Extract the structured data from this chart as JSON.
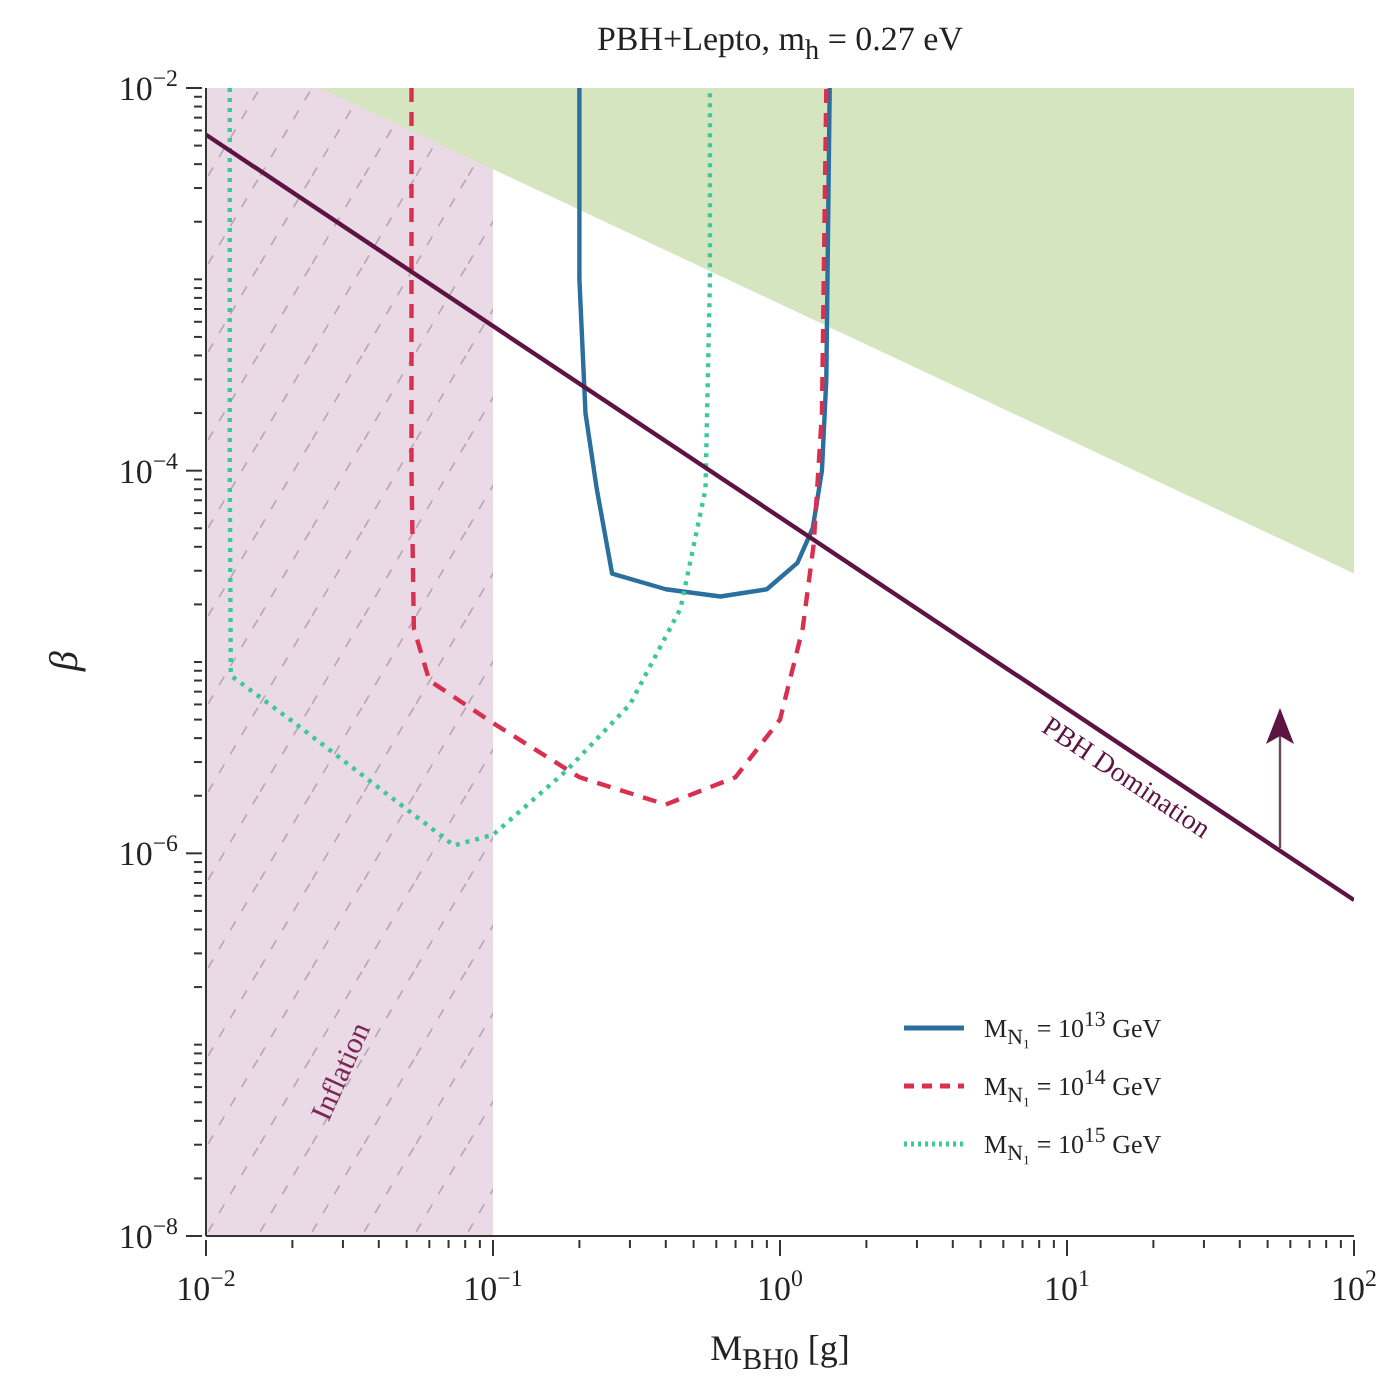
{
  "chart_data": {
    "type": "line",
    "title": "PBH+Lepto, m$_{h}$ = 0.27 eV",
    "xlabel": "M$_{BH0}$ [g]",
    "ylabel": "β",
    "log": "xy",
    "xlim": [
      0.01,
      100
    ],
    "ylim": [
      1e-08,
      0.01
    ],
    "xticks": [
      {
        "value": 0.01,
        "label": "10$^{−2}$"
      },
      {
        "value": 0.02,
        "label": null
      },
      {
        "value": 0.03,
        "label": null
      },
      {
        "value": 0.04,
        "label": null
      },
      {
        "value": 0.05,
        "label": null
      },
      {
        "value": 0.06,
        "label": null
      },
      {
        "value": 0.07,
        "label": null
      },
      {
        "value": 0.08,
        "label": null
      },
      {
        "value": 0.09,
        "label": null
      },
      {
        "value": 0.1,
        "label": "10$^{−1}$"
      },
      {
        "value": 0.2,
        "label": null
      },
      {
        "value": 0.3,
        "label": null
      },
      {
        "value": 0.4,
        "label": null
      },
      {
        "value": 0.5,
        "label": null
      },
      {
        "value": 0.6,
        "label": null
      },
      {
        "value": 0.7,
        "label": null
      },
      {
        "value": 0.8,
        "label": null
      },
      {
        "value": 0.9,
        "label": null
      },
      {
        "value": 1,
        "label": "10$^{0}$"
      },
      {
        "value": 2,
        "label": null
      },
      {
        "value": 3,
        "label": null
      },
      {
        "value": 4,
        "label": null
      },
      {
        "value": 5,
        "label": null
      },
      {
        "value": 6,
        "label": null
      },
      {
        "value": 7,
        "label": null
      },
      {
        "value": 8,
        "label": null
      },
      {
        "value": 9,
        "label": null
      },
      {
        "value": 10,
        "label": "10$^{1}$"
      },
      {
        "value": 20,
        "label": null
      },
      {
        "value": 30,
        "label": null
      },
      {
        "value": 40,
        "label": null
      },
      {
        "value": 50,
        "label": null
      },
      {
        "value": 60,
        "label": null
      },
      {
        "value": 70,
        "label": null
      },
      {
        "value": 80,
        "label": null
      },
      {
        "value": 90,
        "label": null
      },
      {
        "value": 100,
        "label": "10$^{2}$"
      }
    ],
    "yticks": [
      {
        "value": 1e-08,
        "label": "10$^{−8}$"
      },
      {
        "value": 2e-08,
        "label": null
      },
      {
        "value": 3e-08,
        "label": null
      },
      {
        "value": 4e-08,
        "label": null
      },
      {
        "value": 5e-08,
        "label": null
      },
      {
        "value": 6e-08,
        "label": null
      },
      {
        "value": 7e-08,
        "label": null
      },
      {
        "value": 8e-08,
        "label": null
      },
      {
        "value": 9e-08,
        "label": null
      },
      {
        "value": 1e-07,
        "label": null
      },
      {
        "value": 2e-07,
        "label": null
      },
      {
        "value": 3e-07,
        "label": null
      },
      {
        "value": 4e-07,
        "label": null
      },
      {
        "value": 5e-07,
        "label": null
      },
      {
        "value": 6e-07,
        "label": null
      },
      {
        "value": 7e-07,
        "label": null
      },
      {
        "value": 8e-07,
        "label": null
      },
      {
        "value": 9e-07,
        "label": null
      },
      {
        "value": 1e-06,
        "label": "10$^{−6}$"
      },
      {
        "value": 2e-06,
        "label": null
      },
      {
        "value": 3e-06,
        "label": null
      },
      {
        "value": 4e-06,
        "label": null
      },
      {
        "value": 5e-06,
        "label": null
      },
      {
        "value": 6e-06,
        "label": null
      },
      {
        "value": 7e-06,
        "label": null
      },
      {
        "value": 8e-06,
        "label": null
      },
      {
        "value": 9e-06,
        "label": null
      },
      {
        "value": 1e-05,
        "label": null
      },
      {
        "value": 2e-05,
        "label": null
      },
      {
        "value": 3e-05,
        "label": null
      },
      {
        "value": 4e-05,
        "label": null
      },
      {
        "value": 5e-05,
        "label": null
      },
      {
        "value": 6e-05,
        "label": null
      },
      {
        "value": 7e-05,
        "label": null
      },
      {
        "value": 8e-05,
        "label": null
      },
      {
        "value": 9e-05,
        "label": null
      },
      {
        "value": 0.0001,
        "label": "10$^{−4}$"
      },
      {
        "value": 0.0002,
        "label": null
      },
      {
        "value": 0.0003,
        "label": null
      },
      {
        "value": 0.0004,
        "label": null
      },
      {
        "value": 0.0005,
        "label": null
      },
      {
        "value": 0.0006,
        "label": null
      },
      {
        "value": 0.0007,
        "label": null
      },
      {
        "value": 0.0008,
        "label": null
      },
      {
        "value": 0.0009,
        "label": null
      },
      {
        "value": 0.001,
        "label": null
      },
      {
        "value": 0.002,
        "label": null
      },
      {
        "value": 0.003,
        "label": null
      },
      {
        "value": 0.004,
        "label": null
      },
      {
        "value": 0.005,
        "label": null
      },
      {
        "value": 0.006,
        "label": null
      },
      {
        "value": 0.007,
        "label": null
      },
      {
        "value": 0.008,
        "label": null
      },
      {
        "value": 0.009,
        "label": null
      },
      {
        "value": 0.01,
        "label": "10$^{−2}$"
      }
    ],
    "legend": "bottom right",
    "marker": "none",
    "series": [
      {
        "type": "area",
        "color": "#d4e5c0",
        "x": [
          0.025,
          100
        ],
        "values": [
          0.01,
          2.9e-05
        ]
      },
      {
        "name": "M$_{N₁}$ = 10$^{13}$ GeV",
        "color": "#2a6f9e",
        "line_style": "solid",
        "x": [
          0.2,
          0.2,
          0.21,
          0.23,
          0.26,
          0.4,
          0.62,
          0.9,
          1.15,
          1.3,
          1.4,
          1.45,
          1.49
        ],
        "values": [
          0.01,
          0.001,
          0.0002,
          8e-05,
          2.9e-05,
          2.4e-05,
          2.2e-05,
          2.4e-05,
          3.3e-05,
          5e-05,
          0.0001,
          0.0003,
          0.01
        ]
      },
      {
        "name": "M$_{N₁}$ = 10$^{14}$ GeV",
        "color": "#d93050",
        "line_style": "dashed",
        "x": [
          0.052,
          0.052,
          0.053,
          0.06,
          0.1,
          0.2,
          0.4,
          0.7,
          1.0,
          1.2,
          1.31,
          1.4,
          1.45
        ],
        "values": [
          0.01,
          0.0001,
          1.5e-05,
          8e-06,
          4.8e-06,
          2.5e-06,
          1.8e-06,
          2.5e-06,
          5e-06,
          1.5e-05,
          4.1e-05,
          0.0002,
          0.01
        ]
      },
      {
        "name": "M$_{N₁}$ = 10$^{15}$ GeV",
        "color": "#3cc89a",
        "line_style": "dotted",
        "x": [
          0.0121,
          0.0121,
          0.0122,
          0.02,
          0.04,
          0.073,
          0.1,
          0.18,
          0.3,
          0.45,
          0.55,
          0.57,
          0.57
        ],
        "values": [
          0.01,
          0.0001,
          8.5e-06,
          4.9e-06,
          2.2e-06,
          1.1e-06,
          1.25e-06,
          2.7e-06,
          6e-06,
          1.9e-05,
          8e-05,
          0.001,
          0.01
        ]
      },
      {
        "color": "#5c1543",
        "line_style": "solid",
        "x": [
          0.01,
          100
        ],
        "values": [
          0.0057,
          5.7e-07
        ]
      }
    ],
    "bands": [
      {
        "axis": "x",
        "from": 0.01,
        "to": 0.1,
        "label": "Inflation",
        "color": "#eadae5"
      }
    ],
    "annotations": [
      {
        "text": "PBH Domination",
        "x": 18,
        "y": 3.2e-06
      }
    ]
  }
}
